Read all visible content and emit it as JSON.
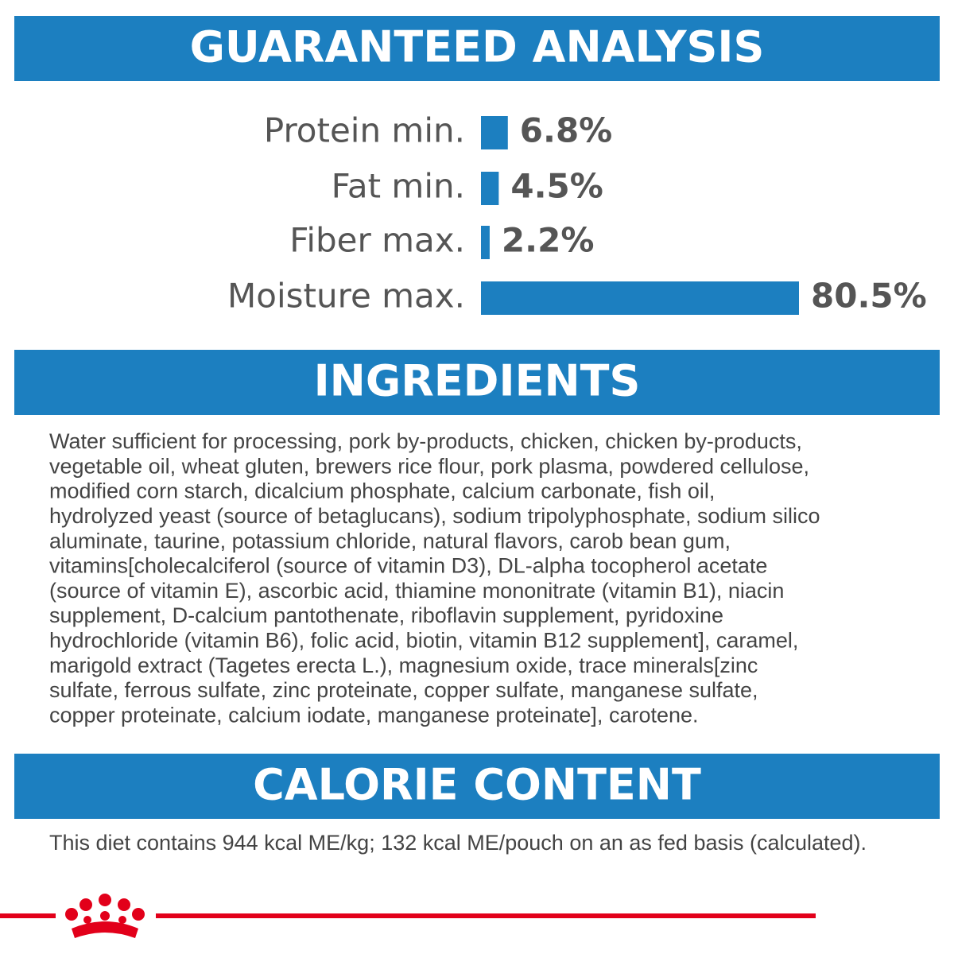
{
  "chart_data": {
    "type": "bar",
    "orientation": "horizontal",
    "title": "GUARANTEED ANALYSIS",
    "categories": [
      "Protein min.",
      "Fat min.",
      "Fiber max.",
      "Moisture max."
    ],
    "values": [
      6.8,
      4.5,
      2.2,
      80.5
    ],
    "value_labels": [
      "6.8%",
      "4.5%",
      "2.2%",
      "80.5%"
    ],
    "color": "#1c7fc0"
  },
  "ingredients": {
    "title": "INGREDIENTS",
    "lines": [
      "Water sufficient for processing, pork by-products, chicken, chicken by-products,",
      "vegetable oil, wheat gluten, brewers rice flour, pork plasma, powdered cellulose,",
      "modified corn starch, dicalcium phosphate, calcium carbonate, fish oil,",
      "hydrolyzed yeast (source of betaglucans), sodium tripolyphosphate, sodium silico",
      "aluminate, taurine, potassium chloride, natural flavors, carob bean gum,",
      "vitamins[cholecalciferol (source of vitamin D3), DL-alpha tocopherol acetate",
      "(source of vitamin E), ascorbic acid, thiamine mononitrate (vitamin B1), niacin",
      "supplement, D-calcium pantothenate, riboflavin supplement, pyridoxine",
      "hydrochloride (vitamin B6), folic acid, biotin, vitamin B12 supplement], caramel,",
      "marigold extract (Tagetes erecta L.), magnesium oxide, trace minerals[zinc",
      "sulfate, ferrous sulfate, zinc proteinate, copper sulfate, manganese sulfate,",
      "copper proteinate, calcium iodate, manganese proteinate], carotene."
    ]
  },
  "calorie": {
    "title": "CALORIE CONTENT",
    "text": "This diet contains 944 kcal ME/kg; 132 kcal ME/pouch on an as fed basis (calculated)."
  }
}
